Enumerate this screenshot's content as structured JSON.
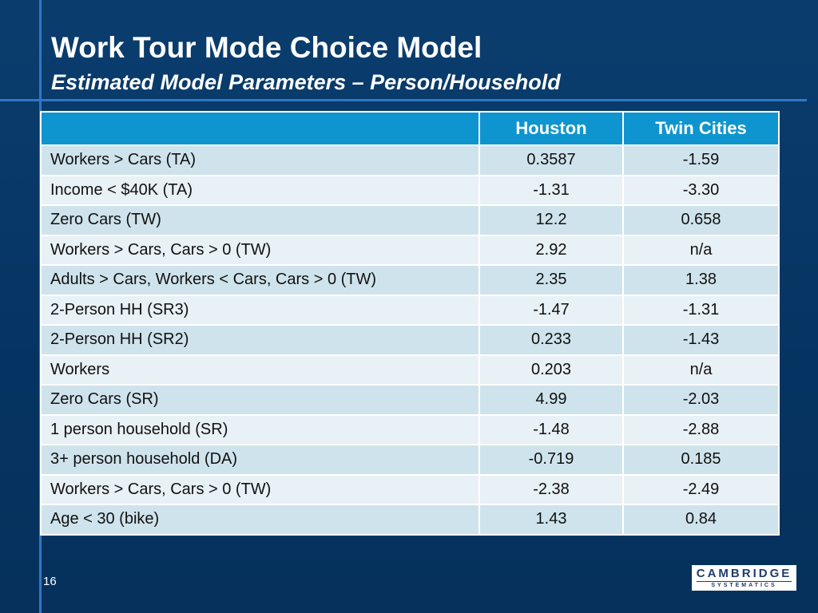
{
  "slide": {
    "title": "Work Tour Mode Choice Model",
    "subtitle": "Estimated Model Parameters – Person/Household",
    "page_number": "16"
  },
  "table": {
    "headers": [
      "",
      "Houston",
      "Twin Cities"
    ],
    "rows": [
      {
        "label": "Workers > Cars (TA)",
        "houston": "0.3587",
        "twin_cities": "-1.59"
      },
      {
        "label": "Income < $40K (TA)",
        "houston": "-1.31",
        "twin_cities": "-3.30"
      },
      {
        "label": "Zero Cars (TW)",
        "houston": "12.2",
        "twin_cities": "0.658"
      },
      {
        "label": "Workers > Cars, Cars > 0 (TW)",
        "houston": "2.92",
        "twin_cities": "n/a"
      },
      {
        "label": "Adults > Cars, Workers < Cars, Cars > 0 (TW)",
        "houston": "2.35",
        "twin_cities": "1.38"
      },
      {
        "label": "2-Person HH (SR3)",
        "houston": "-1.47",
        "twin_cities": "-1.31"
      },
      {
        "label": "2-Person HH (SR2)",
        "houston": "0.233",
        "twin_cities": "-1.43"
      },
      {
        "label": "Workers",
        "houston": "0.203",
        "twin_cities": "n/a"
      },
      {
        "label": "Zero Cars (SR)",
        "houston": "4.99",
        "twin_cities": "-2.03"
      },
      {
        "label": "1 person household (SR)",
        "houston": "-1.48",
        "twin_cities": "-2.88"
      },
      {
        "label": "3+ person household (DA)",
        "houston": "-0.719",
        "twin_cities": "0.185"
      },
      {
        "label": "Workers > Cars, Cars > 0 (TW)",
        "houston": "-2.38",
        "twin_cities": "-2.49"
      },
      {
        "label": "Age < 30 (bike)",
        "houston": "1.43",
        "twin_cities": "0.84"
      }
    ]
  },
  "logo": {
    "main": "CAMBRIDGE",
    "sub": "SYSTEMATICS"
  },
  "colors": {
    "background": "#073763",
    "accent_line": "#2f78c4",
    "header_fill": "#0e95cf",
    "row_dark": "#cfe3ec",
    "row_light": "#e8f1f5"
  }
}
